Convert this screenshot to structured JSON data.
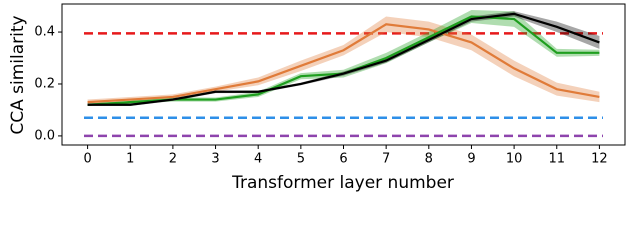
{
  "chart_data": {
    "type": "line",
    "xlabel": "Transformer layer number",
    "ylabel": "CCA similarity",
    "x": [
      0,
      1,
      2,
      3,
      4,
      5,
      6,
      7,
      8,
      9,
      10,
      11,
      12
    ],
    "xlim": [
      -0.6,
      12.6
    ],
    "ylim": [
      -0.035,
      0.508
    ],
    "xticks": [
      0,
      1,
      2,
      3,
      4,
      5,
      6,
      7,
      8,
      9,
      10,
      11,
      12
    ],
    "yticks": [
      {
        "value": 0,
        "label": "0.0"
      },
      0.2,
      0.4
    ],
    "reference_lines": [
      {
        "color": "#e6191b",
        "value": 0.395
      },
      {
        "color": "#2e8fe8",
        "value": 0.07
      },
      {
        "color": "#8e44ad",
        "value": 0.0
      }
    ],
    "series": [
      {
        "color": "#e07b39",
        "values": [
          0.13,
          0.14,
          0.15,
          0.18,
          0.21,
          0.27,
          0.33,
          0.43,
          0.41,
          0.36,
          0.26,
          0.18,
          0.15
        ],
        "errors": [
          0.01,
          0.01,
          0.01,
          0.01,
          0.015,
          0.02,
          0.02,
          0.03,
          0.03,
          0.03,
          0.03,
          0.025,
          0.02
        ]
      },
      {
        "color": "#1e9e1e",
        "values": [
          0.12,
          0.13,
          0.14,
          0.14,
          0.16,
          0.23,
          0.24,
          0.3,
          0.38,
          0.46,
          0.45,
          0.32,
          0.32
        ],
        "errors": [
          0.005,
          0.005,
          0.008,
          0.008,
          0.01,
          0.012,
          0.015,
          0.02,
          0.02,
          0.025,
          0.03,
          0.015,
          0.012
        ]
      },
      {
        "color": "#000000",
        "values": [
          0.12,
          0.12,
          0.14,
          0.17,
          0.17,
          0.2,
          0.24,
          0.29,
          0.37,
          0.45,
          0.47,
          0.42,
          0.36
        ],
        "errors": [
          0.005,
          0.005,
          0.005,
          0.005,
          0.005,
          0.005,
          0.008,
          0.008,
          0.01,
          0.01,
          0.01,
          0.02,
          0.025
        ]
      }
    ]
  }
}
